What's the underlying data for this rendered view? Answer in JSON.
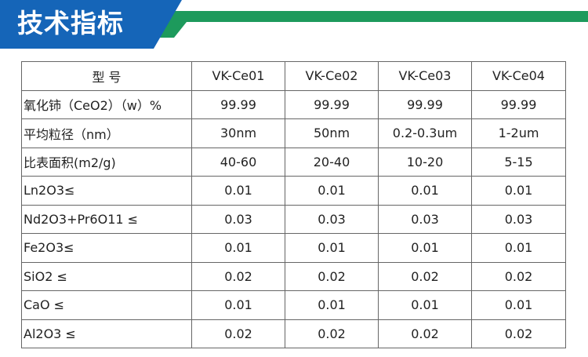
{
  "header": {
    "title": "技术指标",
    "colors": {
      "blue": "#1565b8",
      "green": "#1d9a5c"
    }
  },
  "table": {
    "columns": [
      "型 号",
      "VK-Ce01",
      "VK-Ce02",
      "VK-Ce03",
      "VK-Ce04"
    ],
    "rows": [
      {
        "label": "氧化铈（CeO2）（w）%",
        "values": [
          "99.99",
          "99.99",
          "99.99",
          "99.99"
        ]
      },
      {
        "label": "平均粒径（nm）",
        "values": [
          "30nm",
          "50nm",
          "0.2-0.3um",
          "1-2um"
        ]
      },
      {
        "label": "比表面积(m2/g)",
        "values": [
          "40-60",
          "20-40",
          "10-20",
          "5-15"
        ]
      },
      {
        "label": "Ln2O3≤",
        "values": [
          "0.01",
          "0.01",
          "0.01",
          "0.01"
        ]
      },
      {
        "label": "Nd2O3+Pr6O11 ≤",
        "values": [
          "0.03",
          "0.03",
          "0.03",
          "0.03"
        ]
      },
      {
        "label": "Fe2O3≤",
        "values": [
          "0.01",
          "0.01",
          "0.01",
          "0.01"
        ]
      },
      {
        "label": "SiO2 ≤",
        "values": [
          "0.02",
          "0.02",
          "0.02",
          "0.02"
        ]
      },
      {
        "label": "CaO ≤",
        "values": [
          "0.01",
          "0.01",
          "0.01",
          "0.01"
        ]
      },
      {
        "label": "Al2O3 ≤",
        "values": [
          "0.02",
          "0.02",
          "0.02",
          "0.02"
        ]
      }
    ]
  }
}
